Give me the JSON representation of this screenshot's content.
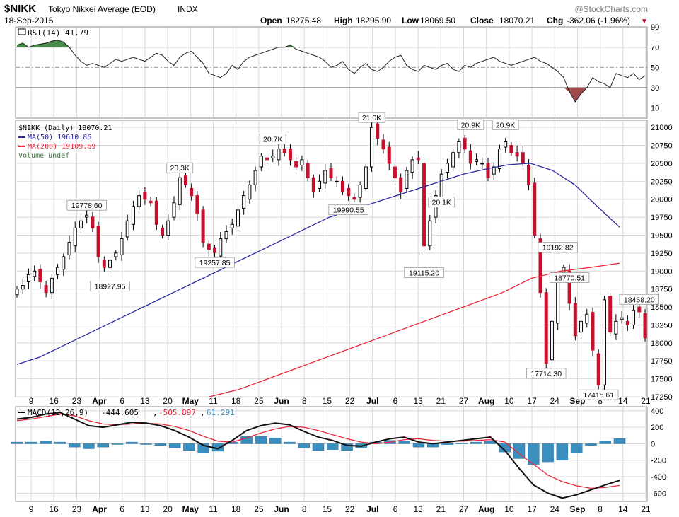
{
  "header": {
    "symbol": "$NIKK",
    "name": "Tokyo Nikkei Average (EOD)",
    "exchange": "INDX",
    "date": "18-Sep-2015",
    "watermark": "@StockCharts.com",
    "open_label": "Open",
    "open_value": "18275.48",
    "high_label": "High",
    "high_value": "18295.90",
    "low_label": "Low",
    "low_value": "18069.50",
    "close_label": "Close",
    "close_value": "18070.21",
    "chg_label": "Chg",
    "chg_value": "-362.06 (-1.96%)",
    "chg_arrow": "▼"
  },
  "legend": {
    "rsi": "RSI(14) 41.79",
    "price": "$NIKK (Daily) 18070.21",
    "ma50": "MA(50) 19610.86",
    "ma200": "MA(200) 19109.69",
    "volume": "Volume undef",
    "macd_prefix": "MACD(12,26,9)",
    "macd_value": "-444.605",
    "signal_value": "-505.897",
    "hist_value": "61.291",
    "comma": ","
  },
  "colors": {
    "up": "#ffffff",
    "down": "#c8102e",
    "ma50": "#2a2aa0",
    "ma200": "#e8283c",
    "rsi_over": "#4a8a4a",
    "rsi_under": "#a04a4a",
    "hist": "#3a8fc0",
    "grid": "#d8d8d8"
  },
  "chart_data": [
    {
      "type": "line",
      "name": "RSI(14)",
      "ylim": [
        0,
        90
      ],
      "yticks": [
        "90",
        "70",
        "50",
        "30",
        "10"
      ],
      "reference_lines": [
        70,
        50,
        30
      ],
      "values": [
        72,
        74,
        70,
        72,
        73,
        74,
        76,
        77,
        75,
        70,
        62,
        56,
        52,
        54,
        52,
        50,
        54,
        58,
        56,
        58,
        60,
        58,
        56,
        60,
        64,
        62,
        56,
        52,
        60,
        64,
        66,
        60,
        54,
        44,
        42,
        40,
        44,
        52,
        48,
        56,
        60,
        62,
        64,
        66,
        68,
        70,
        70,
        72,
        68,
        66,
        64,
        62,
        60,
        56,
        50,
        52,
        56,
        48,
        44,
        50,
        54,
        48,
        46,
        50,
        56,
        60,
        62,
        52,
        48,
        46,
        52,
        50,
        48,
        52,
        54,
        48,
        46,
        52,
        50,
        54,
        56,
        58,
        60,
        56,
        54,
        52,
        54,
        56,
        58,
        60,
        56,
        54,
        50,
        46,
        40,
        26,
        16,
        24,
        30,
        40,
        36,
        34,
        30,
        44,
        42,
        40,
        44,
        38,
        41.79
      ]
    },
    {
      "type": "candlestick",
      "name": "$NIKK (Daily)",
      "ylim": [
        17250,
        21000
      ],
      "yticks": [
        "21000",
        "20750",
        "20500",
        "20250",
        "20000",
        "19750",
        "19500",
        "19250",
        "19000",
        "18750",
        "18500",
        "18250",
        "18000",
        "17750",
        "17500",
        "17250"
      ],
      "xticks": [
        "9",
        "16",
        "23",
        "Apr",
        "6",
        "13",
        "20",
        "May",
        "11",
        "18",
        "25",
        "Jun",
        "8",
        "15",
        "22",
        "Jul",
        "6",
        "13",
        "21",
        "27",
        "Aug",
        "10",
        "17",
        "24",
        "Sep",
        "8",
        "14",
        "21"
      ],
      "annotations": [
        "19778.60",
        "18927.95",
        "20.3K",
        "19257.85",
        "20.7K",
        "19990.55",
        "21.0K",
        "19115.20",
        "20.9K",
        "20.1K",
        "20.9K",
        "19192.82",
        "18770.51",
        "17714.30",
        "17415.61",
        "18468.20"
      ],
      "closes": [
        18750,
        18800,
        18950,
        19000,
        18850,
        18700,
        18900,
        19050,
        19200,
        19400,
        19600,
        19700,
        19778.6,
        19600,
        19200,
        19050,
        19150,
        19250,
        19450,
        19700,
        19900,
        20050,
        20000,
        19950,
        19650,
        19500,
        19700,
        19950,
        20300,
        20200,
        20050,
        19800,
        19400,
        19300,
        19257.85,
        19450,
        19550,
        19650,
        19850,
        20050,
        20200,
        20400,
        20600,
        20550,
        20600,
        20700,
        20650,
        20550,
        20450,
        20550,
        20300,
        20100,
        20250,
        20400,
        20300,
        20250,
        20100,
        20050,
        20000,
        20200,
        20450,
        21000,
        20850,
        20700,
        20500,
        20300,
        20100,
        20400,
        20550,
        20550,
        19350,
        19700,
        20050,
        20350,
        20500,
        20650,
        20800,
        20700,
        20500,
        20550,
        20500,
        20300,
        20450,
        20700,
        20800,
        20650,
        20600,
        20500,
        20200,
        19500,
        18700,
        17714.3,
        18300,
        18900,
        19050,
        18550,
        18100,
        18300,
        18400,
        17900,
        17415.61,
        18600,
        18150,
        18300,
        18350,
        18250,
        18450,
        18432.27,
        18070.21
      ],
      "ma50": [
        17700,
        17800,
        17950,
        18100,
        18250,
        18400,
        18550,
        18700,
        18850,
        19000,
        19150,
        19300,
        19450,
        19600,
        19750,
        19850,
        19950,
        20050,
        20150,
        20250,
        20350,
        20420,
        20480,
        20500,
        20400,
        20200,
        19900,
        19610.86
      ],
      "ma200": [
        17250,
        17350,
        17500,
        17650,
        17800,
        17950,
        18100,
        18250,
        18400,
        18550,
        18700,
        18900,
        19000,
        19050,
        19109.69
      ]
    },
    {
      "type": "line",
      "name": "MACD(12,26,9)",
      "ylim": [
        -700,
        400
      ],
      "yticks": [
        "400",
        "200",
        "0",
        "-200",
        "-400",
        "-600"
      ],
      "macd": [
        300,
        320,
        360,
        380,
        300,
        220,
        200,
        230,
        260,
        250,
        220,
        160,
        80,
        -20,
        -60,
        40,
        160,
        220,
        250,
        230,
        150,
        80,
        40,
        -20,
        -30,
        20,
        60,
        80,
        20,
        0,
        20,
        40,
        60,
        80,
        -80,
        -300,
        -500,
        -600,
        -660,
        -620,
        -560,
        -500,
        -444.605
      ],
      "signal": [
        280,
        300,
        330,
        360,
        340,
        280,
        240,
        230,
        240,
        250,
        240,
        210,
        160,
        90,
        30,
        20,
        70,
        130,
        180,
        210,
        200,
        160,
        110,
        60,
        20,
        0,
        20,
        50,
        60,
        40,
        30,
        30,
        40,
        50,
        20,
        -120,
        -250,
        -380,
        -460,
        -510,
        -540,
        -530,
        -505.897
      ],
      "histogram_last": 61.291
    }
  ]
}
